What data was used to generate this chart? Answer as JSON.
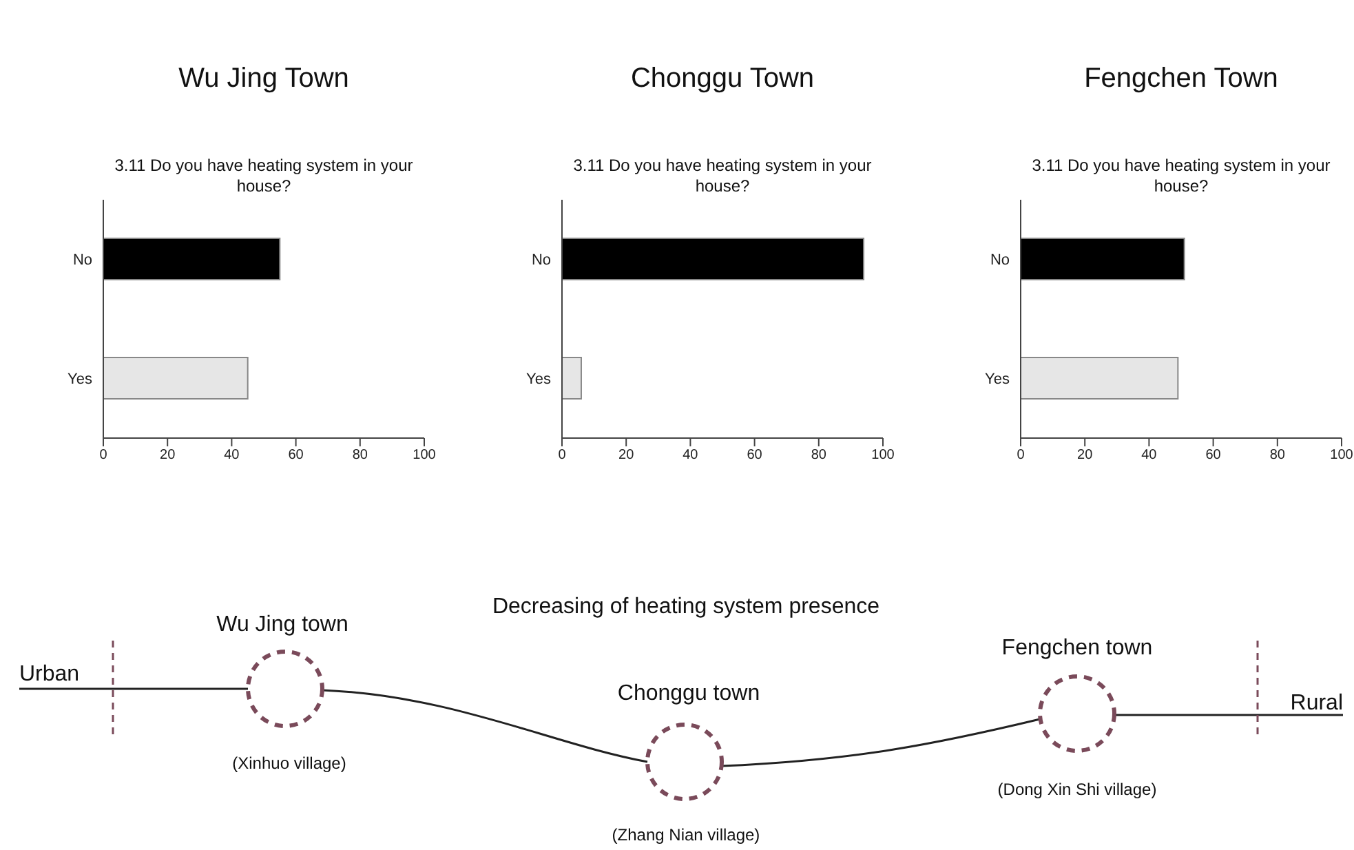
{
  "chart_data": [
    {
      "type": "bar",
      "title": "Wu Jing Town",
      "subtitle": "3.11 Do you have heating system in your house?",
      "orientation": "horizontal",
      "categories": [
        "No",
        "Yes"
      ],
      "values": [
        55,
        45
      ],
      "colors": [
        "#000000",
        "#e6e6e6"
      ],
      "xlim": [
        0,
        100
      ],
      "xticks": [
        0,
        20,
        40,
        60,
        80,
        100
      ],
      "grid": false,
      "legend": false
    },
    {
      "type": "bar",
      "title": "Chonggu Town",
      "subtitle": "3.11 Do you have heating system in your house?",
      "orientation": "horizontal",
      "categories": [
        "No",
        "Yes"
      ],
      "values": [
        94,
        6
      ],
      "colors": [
        "#000000",
        "#e6e6e6"
      ],
      "xlim": [
        0,
        100
      ],
      "xticks": [
        0,
        20,
        40,
        60,
        80,
        100
      ],
      "grid": false,
      "legend": false
    },
    {
      "type": "bar",
      "title": "Fengchen Town",
      "subtitle": "3.11 Do you have heating system in your house?",
      "orientation": "horizontal",
      "categories": [
        "No",
        "Yes"
      ],
      "values": [
        51,
        49
      ],
      "colors": [
        "#000000",
        "#e6e6e6"
      ],
      "xlim": [
        0,
        100
      ],
      "xticks": [
        0,
        20,
        40,
        60,
        80,
        100
      ],
      "grid": false,
      "legend": false
    },
    {
      "type": "other",
      "title": "Decreasing of heating system presence",
      "annotations": [
        "Urban",
        "Rural",
        "Wu Jing town",
        "(Xinhuo village)",
        "Chonggu town",
        "(Zhang Nian village)",
        "Fengchen town",
        "(Dong Xin Shi village)"
      ]
    }
  ]
}
